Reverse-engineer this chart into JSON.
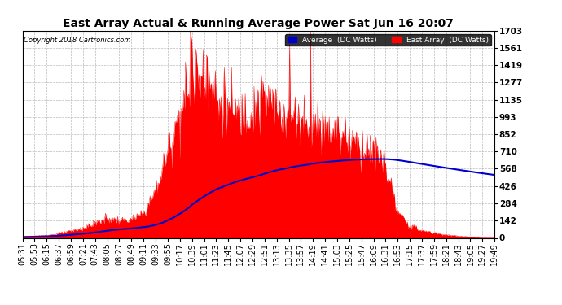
{
  "title": "East Array Actual & Running Average Power Sat Jun 16 20:07",
  "copyright": "Copyright 2018 Cartronics.com",
  "legend_avg": "Average  (DC Watts)",
  "legend_east": "East Array  (DC Watts)",
  "ylabel_values": [
    0.0,
    141.9,
    283.8,
    425.8,
    567.7,
    709.6,
    851.5,
    993.4,
    1135.3,
    1277.3,
    1419.2,
    1561.1,
    1703.0
  ],
  "ymax": 1703.0,
  "ymin": 0.0,
  "background_color": "#ffffff",
  "grid_color": "#aaaaaa",
  "red_color": "#ff0000",
  "blue_color": "#0000cc",
  "title_fontsize": 10,
  "tick_fontsize": 7,
  "xtick_labels": [
    "05:31",
    "05:53",
    "06:15",
    "06:37",
    "06:59",
    "07:21",
    "07:43",
    "08:05",
    "08:27",
    "08:49",
    "09:11",
    "09:33",
    "09:55",
    "10:17",
    "10:39",
    "11:01",
    "11:23",
    "11:45",
    "12:07",
    "12:29",
    "12:51",
    "13:13",
    "13:35",
    "13:57",
    "14:19",
    "14:41",
    "15:03",
    "15:25",
    "15:47",
    "16:09",
    "16:31",
    "16:53",
    "17:15",
    "17:37",
    "17:59",
    "18:21",
    "18:43",
    "19:05",
    "19:27",
    "19:49"
  ]
}
